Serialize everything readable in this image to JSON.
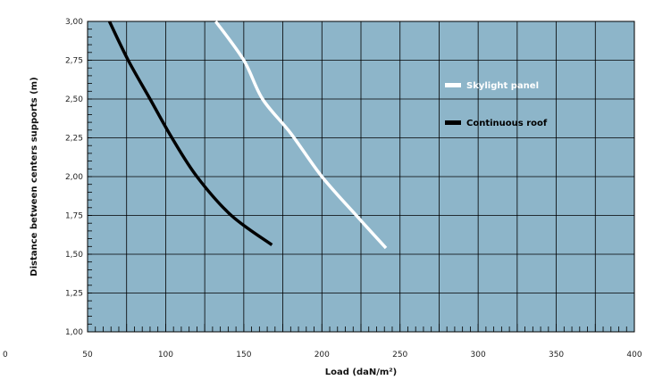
{
  "chart_data": {
    "type": "line",
    "title": "",
    "xlabel": "Load (daN/m²)",
    "ylabel": "Distance between centers supports (m)",
    "xlim": [
      50,
      400
    ],
    "ylim": [
      1.0,
      3.0
    ],
    "x_ticks": [
      50,
      100,
      150,
      200,
      250,
      300,
      350,
      400
    ],
    "x_tick_labels": [
      "50",
      "100",
      "150",
      "200",
      "250",
      "300",
      "350",
      "400"
    ],
    "x_cutoff_label": "0",
    "y_ticks": [
      1.0,
      1.25,
      1.5,
      1.75,
      2.0,
      2.25,
      2.5,
      2.75,
      3.0
    ],
    "y_tick_labels": [
      "1,00",
      "1,25",
      "1,50",
      "1,75",
      "2,00",
      "2,25",
      "2,50",
      "2,75",
      "3,00"
    ],
    "grid": true,
    "legend_position": "right",
    "series": [
      {
        "name": "Skylight panel",
        "color": "#ffffff",
        "points": [
          [
            132,
            3.0
          ],
          [
            150,
            2.75
          ],
          [
            162,
            2.5
          ],
          [
            180,
            2.28
          ],
          [
            200,
            2.0
          ],
          [
            222,
            1.75
          ],
          [
            241,
            1.54
          ]
        ]
      },
      {
        "name": "Continuous roof",
        "color": "#000000",
        "points": [
          [
            64,
            3.0
          ],
          [
            76,
            2.75
          ],
          [
            90,
            2.5
          ],
          [
            104,
            2.25
          ],
          [
            120,
            2.0
          ],
          [
            142,
            1.75
          ],
          [
            168,
            1.56
          ]
        ]
      }
    ]
  },
  "colors": {
    "plot_background": "#8db5c9",
    "grid": "#000000"
  }
}
